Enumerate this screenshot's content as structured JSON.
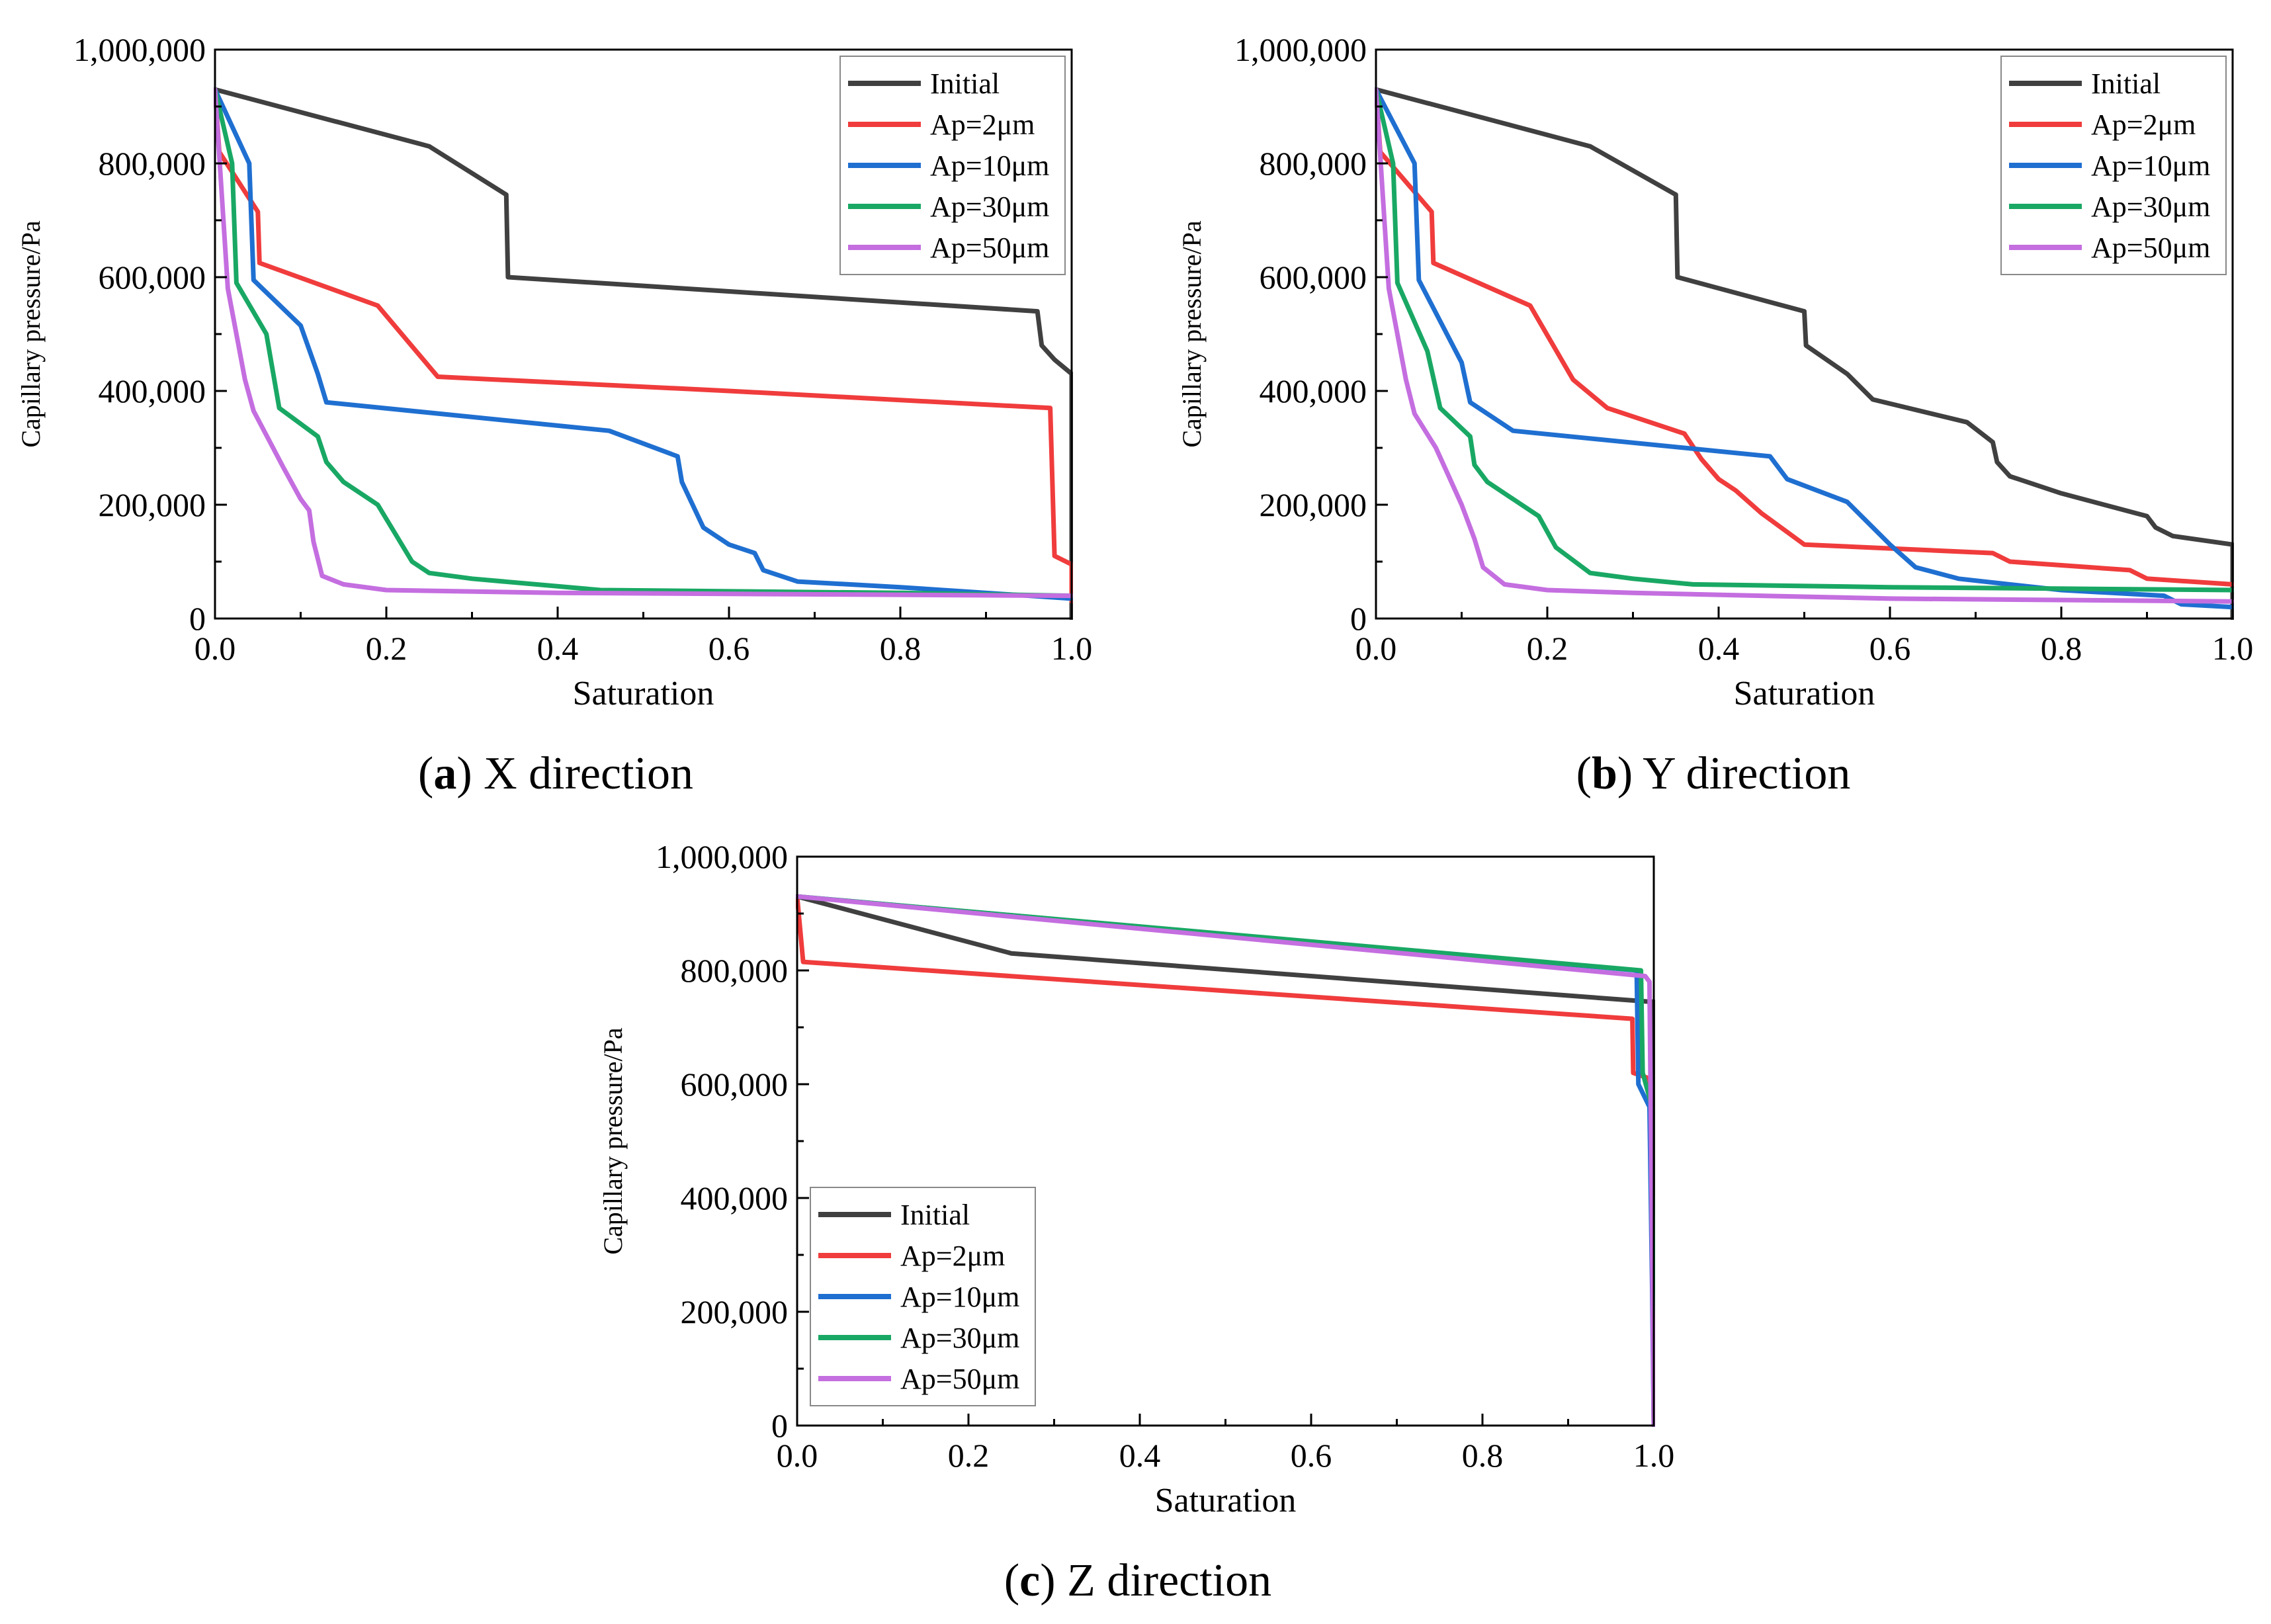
{
  "chart_data": [
    {
      "type": "line",
      "id": "x",
      "caption_letter": "a",
      "caption_text": "X direction",
      "xlabel": "Saturation",
      "ylabel": "Capillary pressure/Pa",
      "xlim": [
        0,
        1
      ],
      "ylim": [
        0,
        1000000
      ],
      "xticks": [
        "0.0",
        "0.2",
        "0.4",
        "0.6",
        "0.8",
        "1.0"
      ],
      "yticks": [
        "0",
        "200,000",
        "400,000",
        "600,000",
        "800,000",
        "1,000,000"
      ],
      "legend_position": "top-right",
      "series": [
        {
          "name": "Initial",
          "color": "#404040",
          "points": [
            [
              0.0,
              930000
            ],
            [
              0.25,
              830000
            ],
            [
              0.34,
              745000
            ],
            [
              0.342,
              600000
            ],
            [
              0.6,
              575000
            ],
            [
              0.96,
              540000
            ],
            [
              0.965,
              480000
            ],
            [
              0.98,
              455000
            ],
            [
              1.0,
              430000
            ],
            [
              1.0,
              0
            ]
          ]
        },
        {
          "name": "Ap=2μm",
          "color": "#f03c3c",
          "points": [
            [
              0.0,
              930000
            ],
            [
              0.005,
              820000
            ],
            [
              0.05,
              715000
            ],
            [
              0.052,
              625000
            ],
            [
              0.19,
              550000
            ],
            [
              0.26,
              425000
            ],
            [
              0.6,
              400000
            ],
            [
              0.975,
              370000
            ],
            [
              0.98,
              110000
            ],
            [
              1.0,
              95000
            ],
            [
              1.0,
              30000
            ]
          ]
        },
        {
          "name": "Ap=10μm",
          "color": "#1f6fd1",
          "points": [
            [
              0.0,
              930000
            ],
            [
              0.04,
              800000
            ],
            [
              0.045,
              595000
            ],
            [
              0.1,
              515000
            ],
            [
              0.12,
              430000
            ],
            [
              0.13,
              380000
            ],
            [
              0.46,
              330000
            ],
            [
              0.54,
              285000
            ],
            [
              0.545,
              240000
            ],
            [
              0.57,
              160000
            ],
            [
              0.6,
              130000
            ],
            [
              0.63,
              115000
            ],
            [
              0.64,
              85000
            ],
            [
              0.68,
              65000
            ],
            [
              0.8,
              55000
            ],
            [
              1.0,
              35000
            ]
          ]
        },
        {
          "name": "Ap=30μm",
          "color": "#19a864",
          "points": [
            [
              0.0,
              930000
            ],
            [
              0.02,
              800000
            ],
            [
              0.025,
              590000
            ],
            [
              0.06,
              500000
            ],
            [
              0.075,
              370000
            ],
            [
              0.12,
              320000
            ],
            [
              0.13,
              275000
            ],
            [
              0.15,
              240000
            ],
            [
              0.19,
              200000
            ],
            [
              0.21,
              150000
            ],
            [
              0.23,
              100000
            ],
            [
              0.25,
              80000
            ],
            [
              0.3,
              70000
            ],
            [
              0.45,
              50000
            ],
            [
              0.8,
              45000
            ],
            [
              1.0,
              40000
            ]
          ]
        },
        {
          "name": "Ap=50μm",
          "color": "#c46ee0",
          "points": [
            [
              0.0,
              930000
            ],
            [
              0.015,
              580000
            ],
            [
              0.035,
              420000
            ],
            [
              0.045,
              365000
            ],
            [
              0.08,
              265000
            ],
            [
              0.1,
              210000
            ],
            [
              0.11,
              190000
            ],
            [
              0.115,
              135000
            ],
            [
              0.125,
              75000
            ],
            [
              0.15,
              60000
            ],
            [
              0.2,
              50000
            ],
            [
              0.4,
              45000
            ],
            [
              1.0,
              40000
            ]
          ]
        }
      ]
    },
    {
      "type": "line",
      "id": "y",
      "caption_letter": "b",
      "caption_text": "Y direction",
      "xlabel": "Saturation",
      "ylabel": "Capillary pressure/Pa",
      "xlim": [
        0,
        1
      ],
      "ylim": [
        0,
        1000000
      ],
      "xticks": [
        "0.0",
        "0.2",
        "0.4",
        "0.6",
        "0.8",
        "1.0"
      ],
      "yticks": [
        "0",
        "200,000",
        "400,000",
        "600,000",
        "800,000",
        "1,000,000"
      ],
      "legend_position": "top-right",
      "series": [
        {
          "name": "Initial",
          "color": "#404040",
          "points": [
            [
              0.0,
              930000
            ],
            [
              0.25,
              830000
            ],
            [
              0.35,
              745000
            ],
            [
              0.352,
              600000
            ],
            [
              0.5,
              540000
            ],
            [
              0.502,
              480000
            ],
            [
              0.55,
              430000
            ],
            [
              0.58,
              385000
            ],
            [
              0.69,
              345000
            ],
            [
              0.72,
              310000
            ],
            [
              0.725,
              275000
            ],
            [
              0.74,
              250000
            ],
            [
              0.8,
              220000
            ],
            [
              0.9,
              180000
            ],
            [
              0.91,
              160000
            ],
            [
              0.93,
              145000
            ],
            [
              1.0,
              130000
            ],
            [
              1.0,
              0
            ]
          ]
        },
        {
          "name": "Ap=2μm",
          "color": "#f03c3c",
          "points": [
            [
              0.0,
              930000
            ],
            [
              0.005,
              820000
            ],
            [
              0.065,
              715000
            ],
            [
              0.067,
              625000
            ],
            [
              0.18,
              550000
            ],
            [
              0.23,
              420000
            ],
            [
              0.27,
              370000
            ],
            [
              0.36,
              325000
            ],
            [
              0.38,
              280000
            ],
            [
              0.4,
              245000
            ],
            [
              0.42,
              225000
            ],
            [
              0.45,
              185000
            ],
            [
              0.5,
              130000
            ],
            [
              0.72,
              115000
            ],
            [
              0.74,
              100000
            ],
            [
              0.88,
              85000
            ],
            [
              0.9,
              70000
            ],
            [
              1.0,
              60000
            ]
          ]
        },
        {
          "name": "Ap=10μm",
          "color": "#1f6fd1",
          "points": [
            [
              0.0,
              930000
            ],
            [
              0.045,
              800000
            ],
            [
              0.05,
              595000
            ],
            [
              0.1,
              450000
            ],
            [
              0.11,
              380000
            ],
            [
              0.16,
              330000
            ],
            [
              0.46,
              285000
            ],
            [
              0.48,
              245000
            ],
            [
              0.55,
              205000
            ],
            [
              0.58,
              160000
            ],
            [
              0.6,
              130000
            ],
            [
              0.63,
              90000
            ],
            [
              0.68,
              70000
            ],
            [
              0.8,
              50000
            ],
            [
              0.92,
              40000
            ],
            [
              0.94,
              25000
            ],
            [
              1.0,
              20000
            ]
          ]
        },
        {
          "name": "Ap=30μm",
          "color": "#19a864",
          "points": [
            [
              0.0,
              930000
            ],
            [
              0.02,
              800000
            ],
            [
              0.025,
              590000
            ],
            [
              0.06,
              470000
            ],
            [
              0.075,
              370000
            ],
            [
              0.11,
              320000
            ],
            [
              0.115,
              270000
            ],
            [
              0.13,
              240000
            ],
            [
              0.19,
              180000
            ],
            [
              0.21,
              125000
            ],
            [
              0.25,
              80000
            ],
            [
              0.3,
              70000
            ],
            [
              0.37,
              60000
            ],
            [
              0.6,
              55000
            ],
            [
              1.0,
              50000
            ]
          ]
        },
        {
          "name": "Ap=50μm",
          "color": "#c46ee0",
          "points": [
            [
              0.0,
              930000
            ],
            [
              0.015,
              580000
            ],
            [
              0.035,
              420000
            ],
            [
              0.045,
              360000
            ],
            [
              0.07,
              300000
            ],
            [
              0.085,
              250000
            ],
            [
              0.1,
              200000
            ],
            [
              0.115,
              140000
            ],
            [
              0.125,
              90000
            ],
            [
              0.15,
              60000
            ],
            [
              0.2,
              50000
            ],
            [
              0.3,
              45000
            ],
            [
              0.6,
              35000
            ],
            [
              1.0,
              30000
            ]
          ]
        }
      ]
    },
    {
      "type": "line",
      "id": "z",
      "caption_letter": "c",
      "caption_text": "Z direction",
      "xlabel": "Saturation",
      "ylabel": "Capillary pressure/Pa",
      "xlim": [
        0,
        1
      ],
      "ylim": [
        0,
        1000000
      ],
      "xticks": [
        "0.0",
        "0.2",
        "0.4",
        "0.6",
        "0.8",
        "1.0"
      ],
      "yticks": [
        "0",
        "200,000",
        "400,000",
        "600,000",
        "800,000",
        "1,000,000"
      ],
      "legend_position": "bottom-left",
      "series": [
        {
          "name": "Initial",
          "color": "#404040",
          "points": [
            [
              0.0,
              930000
            ],
            [
              0.25,
              830000
            ],
            [
              0.995,
              745000
            ],
            [
              1.0,
              745000
            ],
            [
              1.0,
              0
            ]
          ]
        },
        {
          "name": "Ap=2μm",
          "color": "#f03c3c",
          "points": [
            [
              0.0,
              930000
            ],
            [
              0.007,
              815000
            ],
            [
              0.975,
              715000
            ],
            [
              0.976,
              620000
            ],
            [
              0.995,
              610000
            ],
            [
              0.998,
              500000
            ],
            [
              1.0,
              0
            ]
          ]
        },
        {
          "name": "Ap=10μm",
          "color": "#1f6fd1",
          "points": [
            [
              0.0,
              930000
            ],
            [
              0.98,
              800000
            ],
            [
              0.982,
              600000
            ],
            [
              0.995,
              560000
            ],
            [
              0.998,
              250000
            ],
            [
              1.0,
              0
            ]
          ]
        },
        {
          "name": "Ap=30μm",
          "color": "#19a864",
          "points": [
            [
              0.0,
              930000
            ],
            [
              0.985,
              800000
            ],
            [
              0.987,
              620000
            ],
            [
              0.998,
              560000
            ],
            [
              1.0,
              0
            ]
          ]
        },
        {
          "name": "Ap=50μm",
          "color": "#c46ee0",
          "points": [
            [
              0.0,
              930000
            ],
            [
              0.99,
              790000
            ],
            [
              0.995,
              780000
            ],
            [
              1.0,
              0
            ]
          ]
        }
      ]
    }
  ]
}
